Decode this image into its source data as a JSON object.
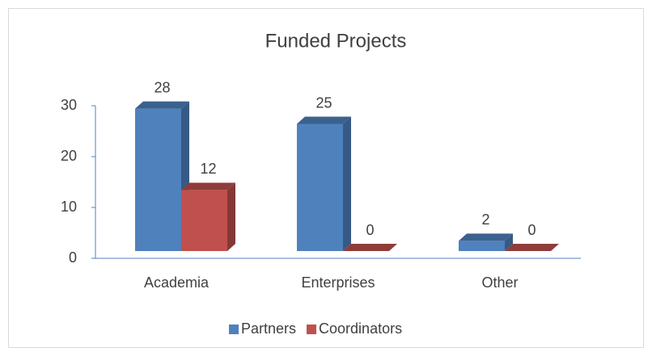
{
  "chart_data": {
    "type": "bar3d",
    "title": "Funded Projects",
    "categories": [
      "Academia",
      "Enterprises",
      "Other"
    ],
    "series": [
      {
        "name": "Partners",
        "color": "#4f81bd",
        "values": [
          28,
          25,
          2
        ]
      },
      {
        "name": "Coordinators",
        "color": "#c0504d",
        "values": [
          12,
          0,
          0
        ]
      }
    ],
    "ylim": [
      0,
      30
    ],
    "yticks": [
      0,
      10,
      20,
      30
    ],
    "grid": false,
    "legend": "bottom"
  }
}
